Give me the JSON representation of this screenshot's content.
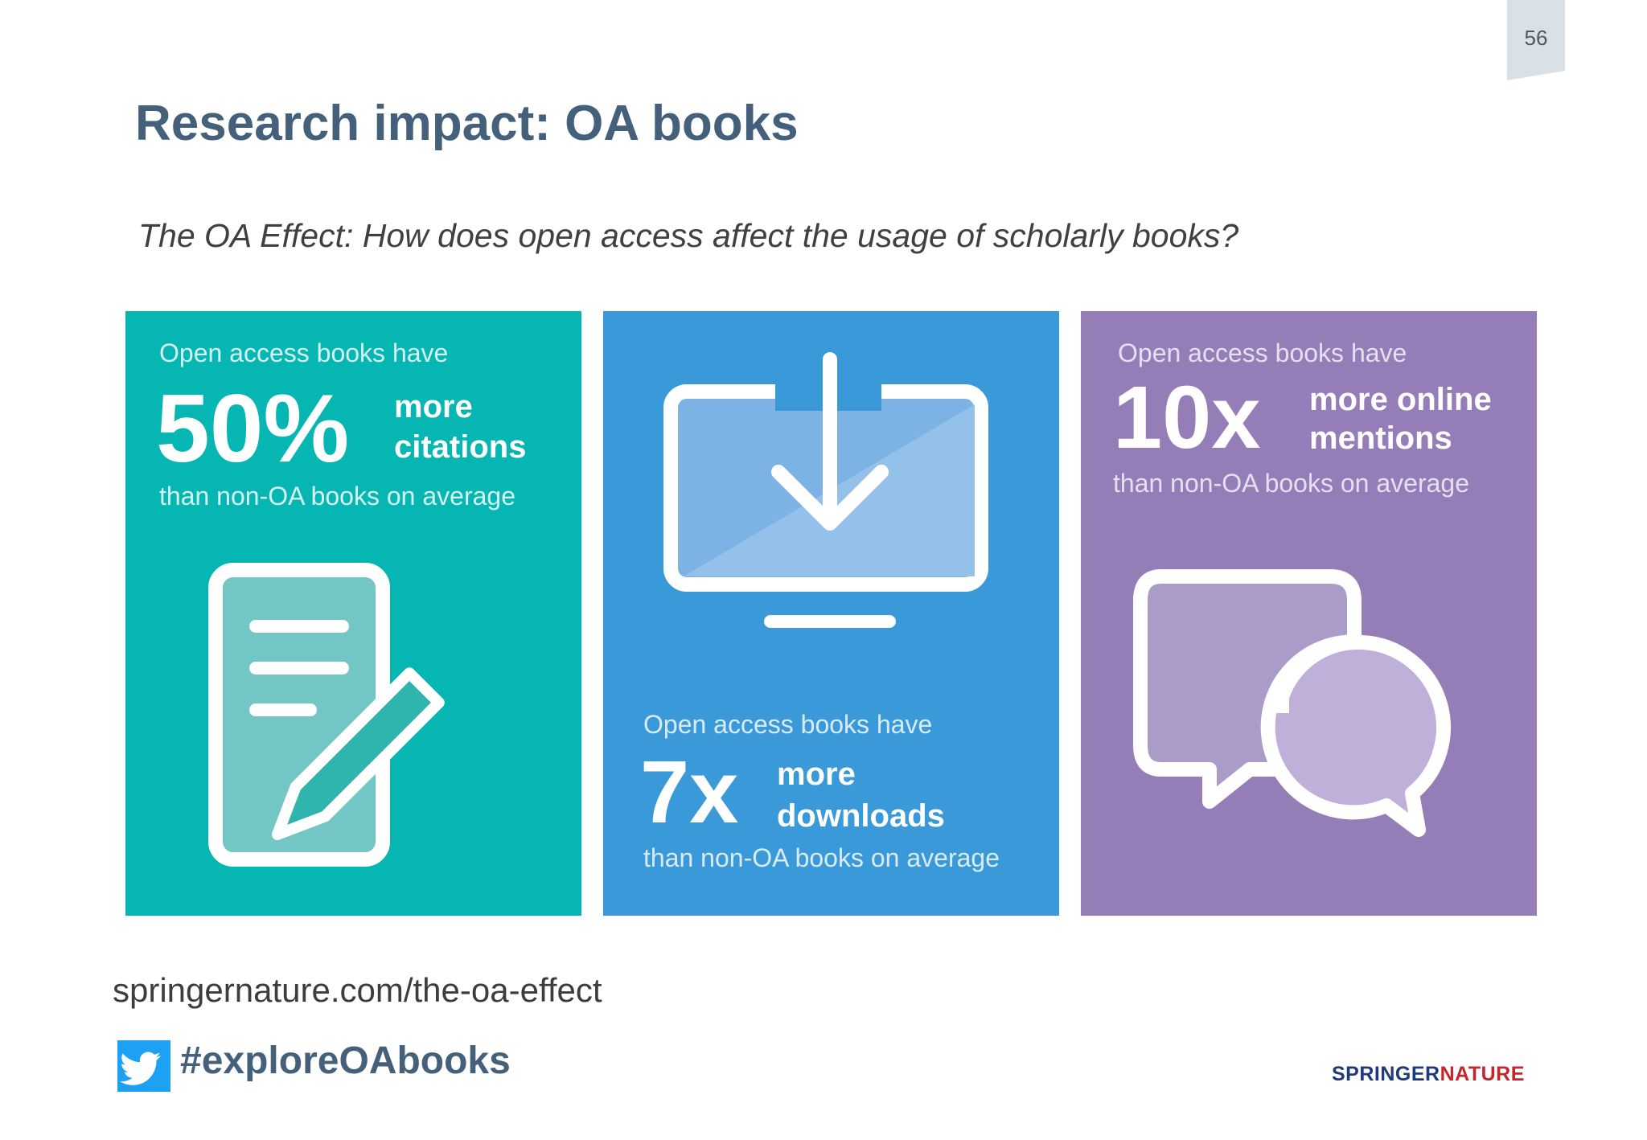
{
  "page": {
    "number": "56",
    "title": "Research impact: OA books",
    "subtitle": "The OA Effect: How does open access affect the usage of scholarly books?"
  },
  "panels": [
    {
      "lead": "Open access books have",
      "big": "50%",
      "unit_line1": "more",
      "unit_line2": "citations",
      "tail": "than non-OA books on average",
      "color": "#05b6b2",
      "icon": "document-pencil-icon"
    },
    {
      "lead": "Open access books have",
      "big": "7x",
      "unit_line1": "more",
      "unit_line2": "downloads",
      "tail": "than non-OA books on average",
      "color": "#3a9ad9",
      "icon": "monitor-download-icon"
    },
    {
      "lead": "Open access books have",
      "big": "10x",
      "unit_line1": "more online",
      "unit_line2": "mentions",
      "tail": "than non-OA books on average",
      "color": "#957db8",
      "icon": "speech-bubbles-icon"
    }
  ],
  "footer": {
    "url": "springernature.com/the-oa-effect",
    "hashtag": "#exploreOAbooks",
    "brand_part1": "SPRINGER",
    "brand_part2": "NATURE"
  }
}
